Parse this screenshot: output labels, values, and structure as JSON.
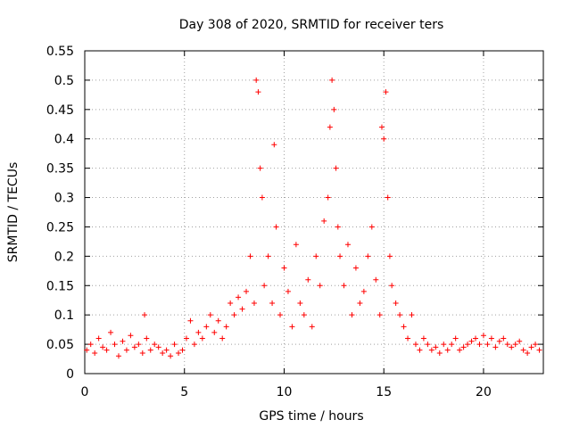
{
  "chart_data": {
    "type": "scatter",
    "title": "Day 308 of 2020, SRMTID for receiver ters",
    "xlabel": "GPS time / hours",
    "ylabel": "SRMTID / TECUs",
    "xlim": [
      0,
      23
    ],
    "ylim": [
      0,
      0.55
    ],
    "xticks": [
      0,
      5,
      10,
      15,
      20
    ],
    "yticks": [
      0,
      0.05,
      0.1,
      0.15,
      0.2,
      0.25,
      0.3,
      0.35,
      0.4,
      0.45,
      0.5,
      0.55
    ],
    "xtick_labels": [
      "0",
      "5",
      "10",
      "15",
      "20"
    ],
    "ytick_labels": [
      "0",
      "0.05",
      "0.1",
      "0.15",
      "0.2",
      "0.25",
      "0.3",
      "0.35",
      "0.4",
      "0.45",
      "0.5",
      "0.55"
    ],
    "grid": true,
    "marker": "+",
    "color": "#ff0000",
    "series": [
      {
        "name": "SRMTID",
        "x": [
          0.1,
          0.3,
          0.5,
          0.7,
          0.9,
          1.1,
          1.3,
          1.5,
          1.7,
          1.9,
          2.1,
          2.3,
          2.5,
          2.7,
          2.9,
          3.0,
          3.1,
          3.3,
          3.5,
          3.7,
          3.9,
          4.1,
          4.3,
          4.5,
          4.7,
          4.9,
          5.1,
          5.3,
          5.5,
          5.7,
          5.9,
          6.1,
          6.3,
          6.5,
          6.7,
          6.9,
          7.1,
          7.3,
          7.5,
          7.7,
          7.9,
          8.1,
          8.3,
          8.5,
          8.6,
          8.7,
          8.8,
          8.9,
          9.0,
          9.2,
          9.4,
          9.5,
          9.6,
          9.8,
          10.0,
          10.2,
          10.4,
          10.6,
          10.8,
          11.0,
          11.2,
          11.4,
          11.6,
          11.8,
          12.0,
          12.2,
          12.3,
          12.4,
          12.5,
          12.6,
          12.7,
          12.8,
          13.0,
          13.2,
          13.4,
          13.6,
          13.8,
          14.0,
          14.2,
          14.4,
          14.6,
          14.8,
          14.9,
          15.0,
          15.1,
          15.2,
          15.3,
          15.4,
          15.6,
          15.8,
          16.0,
          16.2,
          16.4,
          16.6,
          16.8,
          17.0,
          17.2,
          17.4,
          17.6,
          17.8,
          18.0,
          18.2,
          18.4,
          18.6,
          18.8,
          19.0,
          19.2,
          19.4,
          19.6,
          19.8,
          20.0,
          20.2,
          20.4,
          20.6,
          20.8,
          21.0,
          21.2,
          21.4,
          21.6,
          21.8,
          22.0,
          22.2,
          22.4,
          22.6,
          22.8
        ],
        "y": [
          0.04,
          0.05,
          0.035,
          0.06,
          0.045,
          0.04,
          0.07,
          0.05,
          0.03,
          0.055,
          0.04,
          0.065,
          0.045,
          0.05,
          0.035,
          0.1,
          0.06,
          0.04,
          0.05,
          0.045,
          0.035,
          0.04,
          0.03,
          0.05,
          0.035,
          0.04,
          0.06,
          0.09,
          0.05,
          0.07,
          0.06,
          0.08,
          0.1,
          0.07,
          0.09,
          0.06,
          0.08,
          0.12,
          0.1,
          0.13,
          0.11,
          0.14,
          0.2,
          0.12,
          0.5,
          0.48,
          0.35,
          0.3,
          0.15,
          0.2,
          0.12,
          0.39,
          0.25,
          0.1,
          0.18,
          0.14,
          0.08,
          0.22,
          0.12,
          0.1,
          0.16,
          0.08,
          0.2,
          0.15,
          0.26,
          0.3,
          0.42,
          0.5,
          0.45,
          0.35,
          0.25,
          0.2,
          0.15,
          0.22,
          0.1,
          0.18,
          0.12,
          0.14,
          0.2,
          0.25,
          0.16,
          0.1,
          0.42,
          0.4,
          0.48,
          0.3,
          0.2,
          0.15,
          0.12,
          0.1,
          0.08,
          0.06,
          0.1,
          0.05,
          0.04,
          0.06,
          0.05,
          0.04,
          0.045,
          0.035,
          0.05,
          0.04,
          0.05,
          0.06,
          0.04,
          0.045,
          0.05,
          0.055,
          0.06,
          0.05,
          0.065,
          0.05,
          0.06,
          0.045,
          0.055,
          0.06,
          0.05,
          0.045,
          0.05,
          0.055,
          0.04,
          0.035,
          0.045,
          0.05,
          0.04
        ]
      }
    ]
  }
}
